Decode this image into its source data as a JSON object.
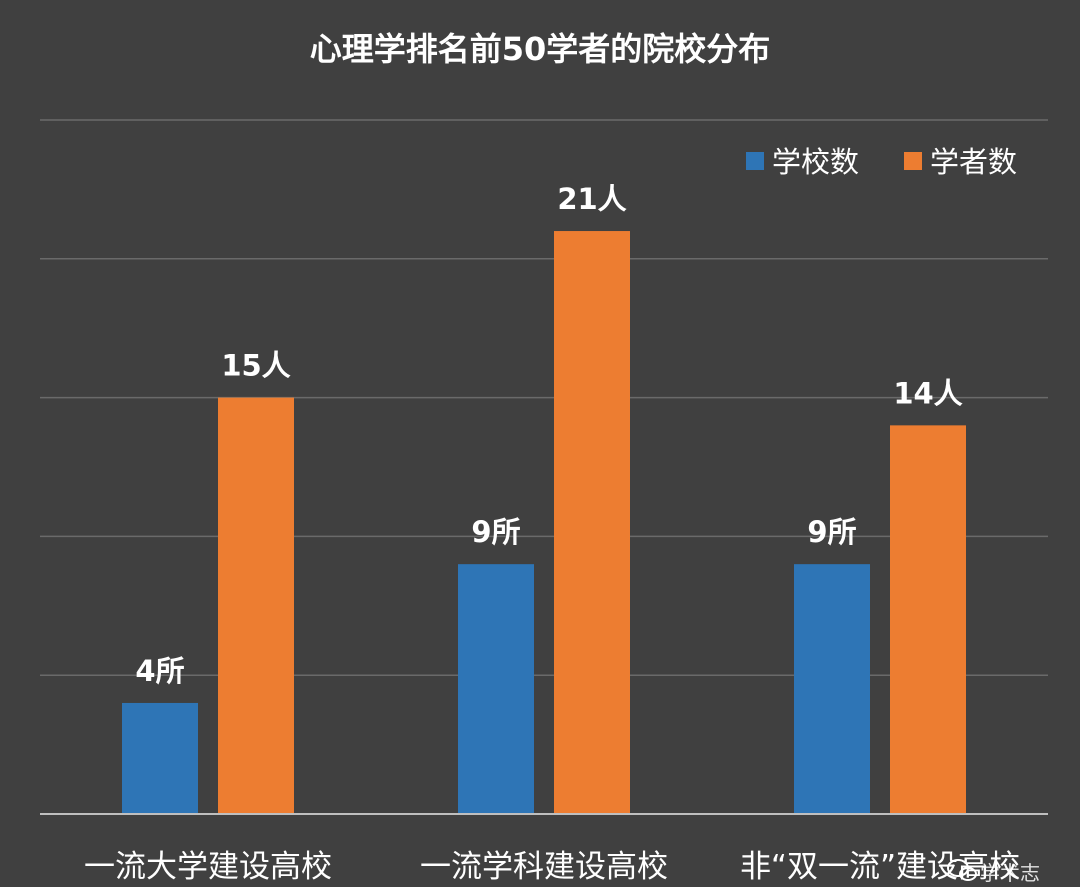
{
  "chart_data": {
    "type": "bar",
    "title": "心理学排名前50学者的院校分布",
    "categories": [
      "一流大学建设高校",
      "一流学科建设高校",
      "非“双一流”建设高校"
    ],
    "series": [
      {
        "name": "学校数",
        "values": [
          4,
          9,
          9
        ],
        "labels": [
          "4所",
          "9所",
          "9所"
        ],
        "color": "#2e75b6"
      },
      {
        "name": "学者数",
        "values": [
          15,
          21,
          14
        ],
        "labels": [
          "15人",
          "21人",
          "14人"
        ],
        "color": "#ed7d31"
      }
    ],
    "ylim": [
      0,
      25
    ],
    "y_ticks": [
      0,
      5,
      10,
      15,
      20,
      25
    ],
    "y_tick_labels_visible": false,
    "grid": true,
    "legend": "top-right",
    "background": "#404040"
  },
  "watermark": {
    "text": "学术志",
    "icon": "wechat-icon"
  }
}
